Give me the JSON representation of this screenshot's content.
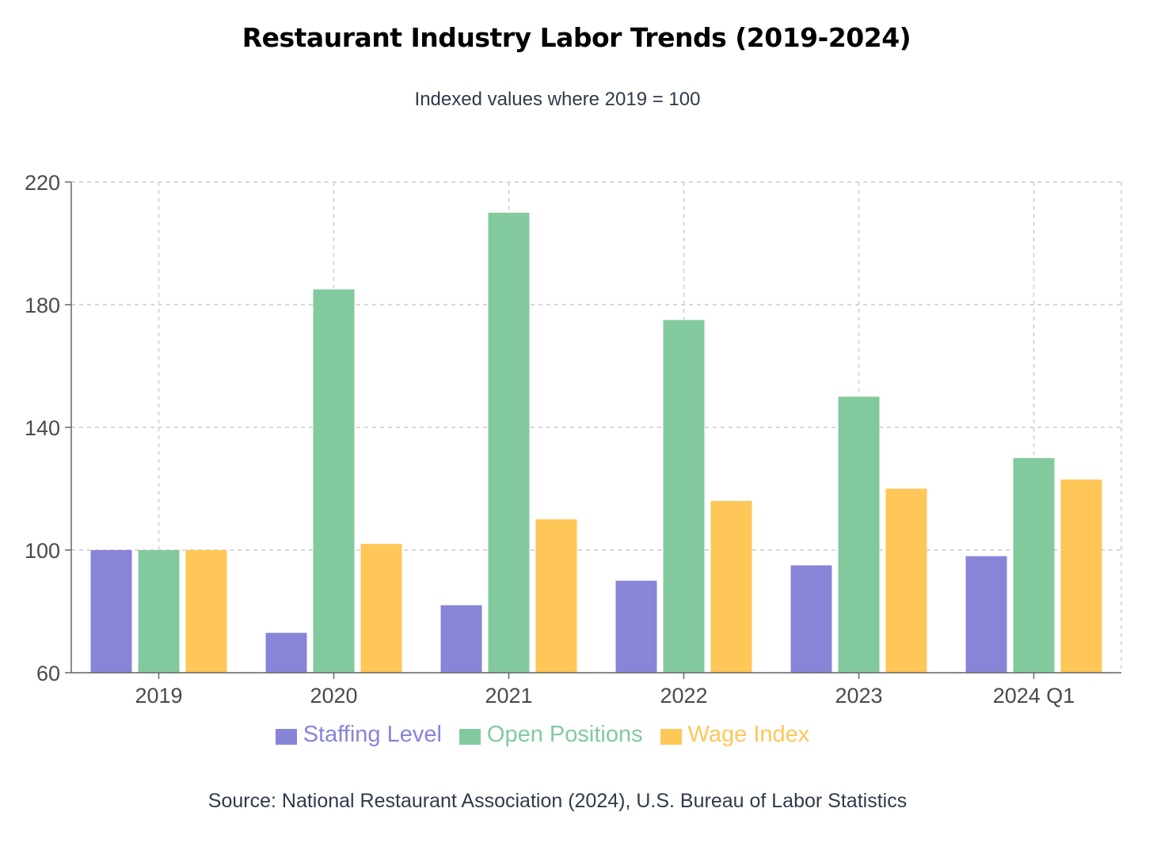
{
  "chart_data": {
    "type": "bar",
    "title": "Restaurant Industry Labor Trends (2019-2024)",
    "subtitle": "Indexed values where 2019 = 100",
    "source": "Source: National Restaurant Association (2024), U.S. Bureau of Labor Statistics",
    "categories": [
      "2019",
      "2020",
      "2021",
      "2022",
      "2023",
      "2024 Q1"
    ],
    "series": [
      {
        "name": "Staffing Level",
        "color": "#8884d8",
        "values": [
          100,
          73,
          82,
          90,
          95,
          98
        ]
      },
      {
        "name": "Open Positions",
        "color": "#82ca9d",
        "values": [
          100,
          185,
          210,
          175,
          150,
          130
        ]
      },
      {
        "name": "Wage Index",
        "color": "#ffc658",
        "values": [
          100,
          102,
          110,
          116,
          120,
          123
        ]
      }
    ],
    "ylim": [
      60,
      220
    ],
    "yticks": [
      60,
      100,
      140,
      180,
      220
    ],
    "grid": true,
    "legend_position": "bottom",
    "xlabel": "",
    "ylabel": ""
  }
}
